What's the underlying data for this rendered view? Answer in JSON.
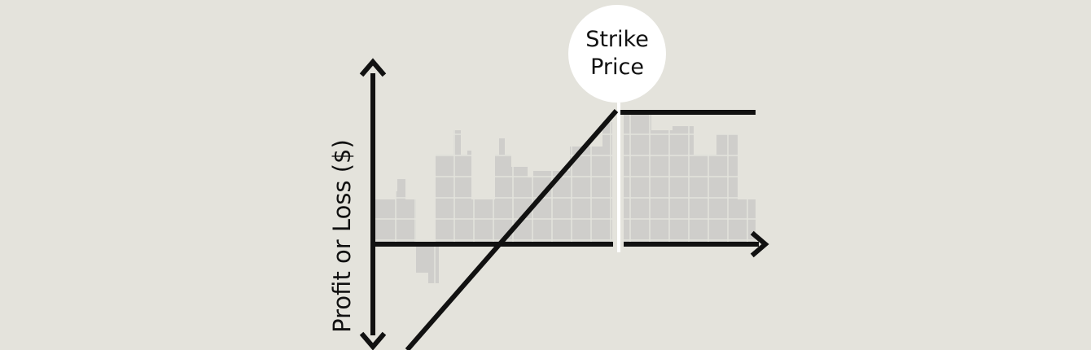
{
  "diagram": {
    "y_axis_label": "Profit or Loss ($)",
    "strike_label_line1": "Strike",
    "strike_label_line2": "Price",
    "colors": {
      "background": "#e4e3dc",
      "line": "#111111",
      "histogram_fill": "#cfcecb",
      "histogram_grid": "#e4e3dc",
      "bubble": "#ffffff"
    }
  }
}
